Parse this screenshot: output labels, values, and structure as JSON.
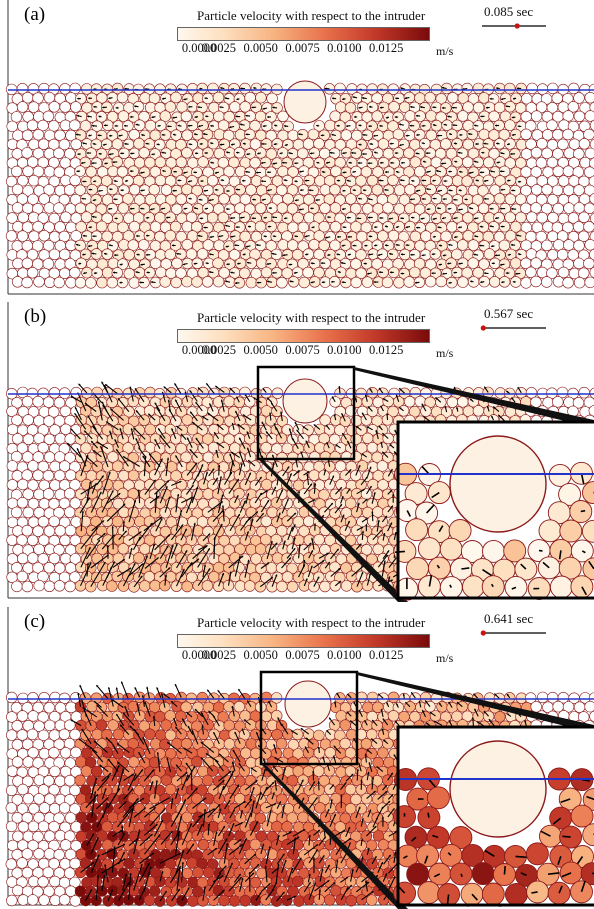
{
  "chart_data": [
    {
      "type": "scatter",
      "panel_label": "(a)",
      "time": "0.085 sec",
      "time_fraction": 0.55,
      "colorbar": {
        "title": "Particle velocity with respect to the intruder",
        "ticks": [
          "0.0000",
          "0.0025",
          "0.0050",
          "0.0075",
          "0.0100",
          "0.0125"
        ],
        "unit": "m/s",
        "range": [
          0,
          0.015
        ]
      },
      "activity_level": 0.02,
      "vector_level": 0.12,
      "inset": false
    },
    {
      "type": "scatter",
      "panel_label": "(b)",
      "time": "0.567 sec",
      "time_fraction": 0.02,
      "colorbar": {
        "title": "Particle velocity with respect to the intruder",
        "ticks": [
          "0.0000",
          "0.0025",
          "0.0050",
          "0.0075",
          "0.0100",
          "0.0125"
        ],
        "unit": "m/s",
        "range": [
          0,
          0.015
        ]
      },
      "activity_level": 0.3,
      "vector_level": 0.85,
      "inset": true
    },
    {
      "type": "scatter",
      "panel_label": "(c)",
      "time": "0.641 sec",
      "time_fraction": 0.02,
      "colorbar": {
        "title": "Particle velocity with respect to the intruder",
        "ticks": [
          "0.0000",
          "0.0025",
          "0.0050",
          "0.0075",
          "0.0100",
          "0.0125"
        ],
        "unit": "m/s",
        "range": [
          0,
          0.015
        ]
      },
      "activity_level": 0.85,
      "vector_level": 0.9,
      "inset": true
    }
  ],
  "colors": {
    "particle_edge": "#8b1a1a",
    "free_surface": "#2233cc",
    "intruder_fill": "#fdf1e4",
    "vector": "#000000",
    "colormap": [
      "#fff8ee",
      "#fde0c0",
      "#f7b482",
      "#e9734c",
      "#c43a2a",
      "#7a0b0b"
    ]
  }
}
